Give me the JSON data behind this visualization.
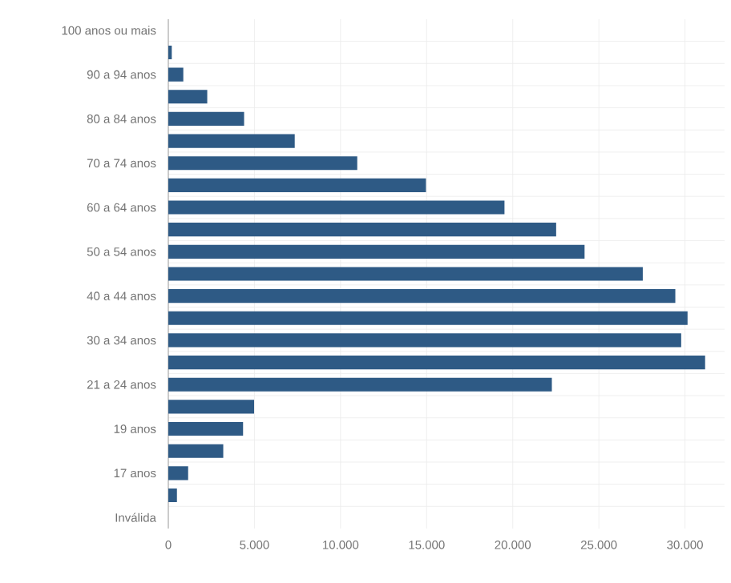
{
  "chart_data": {
    "type": "bar",
    "orientation": "horizontal",
    "categories": [
      "100 anos ou mais",
      null,
      "90 a 94 anos",
      null,
      "80 a 84 anos",
      null,
      "70 a 74 anos",
      null,
      "60 a 64 anos",
      null,
      "50 a 54 anos",
      null,
      "40 a 44 anos",
      null,
      "30 a 34 anos",
      null,
      "21 a 24 anos",
      null,
      "19 anos",
      null,
      "17 anos",
      null,
      "Inválida"
    ],
    "values": [
      0,
      200,
      870,
      2260,
      4400,
      7340,
      10970,
      14960,
      19520,
      22520,
      24170,
      27550,
      29440,
      30150,
      29780,
      31170,
      22270,
      4980,
      4340,
      3190,
      1150,
      500,
      0
    ],
    "color": "#2e5a85",
    "xlim": [
      0,
      32300
    ],
    "xticks": [
      0,
      {
        "value": 5000,
        "label": "5.000"
      },
      {
        "value": 10000,
        "label": "10.000"
      },
      {
        "value": 15000,
        "label": "15.000"
      },
      {
        "value": 20000,
        "label": "20.000"
      },
      {
        "value": 25000,
        "label": "25.000"
      },
      {
        "value": 30000,
        "label": "30.000"
      }
    ],
    "grid": true
  }
}
